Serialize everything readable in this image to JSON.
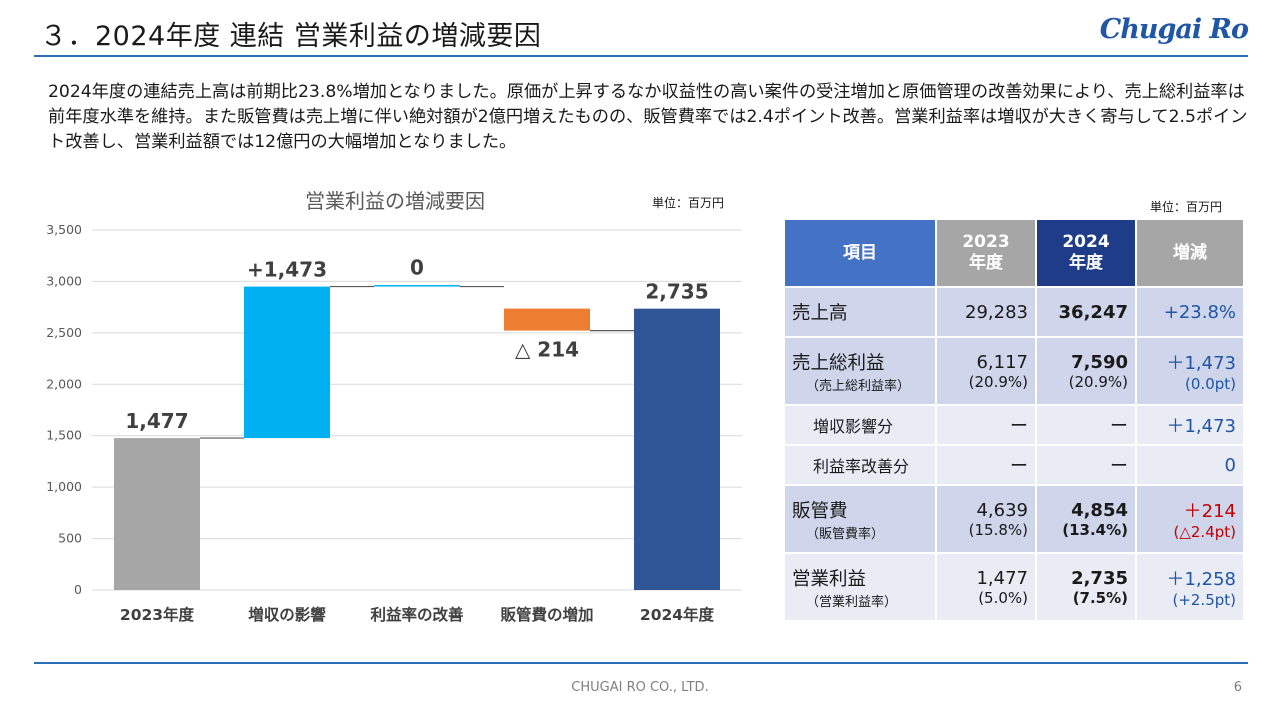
{
  "slide": {
    "title": "３．2024年度 連結 営業利益の増減要因",
    "logo": "Chugai Ro",
    "summary": "2024年度の連結売上高は前期比23.8%増加となりました。原価が上昇するなか収益性の高い案件の受注増加と原価管理の改善効果により、売上総利益率は前年度水準を維持。また販管費は売上増に伴い絶対額が2億円増えたものの、販管費率では2.4ポイント改善。営業利益率は増収が大きく寄与して2.5ポイント改善し、営業利益額では12億円の大幅増加となりました。",
    "footer": "CHUGAI RO CO., LTD.",
    "page": "6"
  },
  "chart_data": {
    "type": "bar",
    "subtype": "waterfall",
    "title": "営業利益の増減要因",
    "unit": "単位：百万円",
    "categories": [
      "2023年度",
      "増収の影響",
      "利益率の改善",
      "販管費の増加",
      "2024年度"
    ],
    "values": [
      1477,
      1473,
      0,
      -214,
      2735
    ],
    "bases": [
      0,
      1477,
      2950,
      2736,
      0
    ],
    "data_labels": [
      "1,477",
      "+1,473",
      "0",
      "△ 214",
      "2,735"
    ],
    "colors": [
      "#a6a6a6",
      "#00b0f0",
      "#00b0f0",
      "#ed7d31",
      "#2f5597"
    ],
    "ylim": [
      0,
      3500
    ],
    "yticks": [
      0,
      500,
      1000,
      1500,
      2000,
      2500,
      3000,
      3500
    ],
    "ytick_labels": [
      "0",
      "500",
      "1,000",
      "1,500",
      "2,000",
      "2,500",
      "3,000",
      "3,500"
    ],
    "grid": true
  },
  "table": {
    "unit": "単位：百万円",
    "headers": {
      "item": "項目",
      "prev": [
        "2023",
        "年度"
      ],
      "cur": [
        "2024",
        "年度"
      ],
      "change": "増減"
    },
    "rows": {
      "sales": {
        "label": "売上高",
        "prev": "29,283",
        "cur": "36,247",
        "change": "+23.8%"
      },
      "gross": {
        "label": "売上総利益",
        "sub": "（売上総利益率）",
        "prev": "6,117",
        "prev_sub": "(20.9%)",
        "cur": "7,590",
        "cur_sub": "(20.9%)",
        "change": "＋1,473",
        "change_sub": "(0.0pt)"
      },
      "volume": {
        "label": "増収影響分",
        "prev": "ー",
        "cur": "ー",
        "change": "＋1,473"
      },
      "margin": {
        "label": "利益率改善分",
        "prev": "ー",
        "cur": "ー",
        "change": "0"
      },
      "sga": {
        "label": "販管費",
        "sub": "（販管費率）",
        "prev": "4,639",
        "prev_sub": "(15.8%)",
        "cur": "4,854",
        "cur_sub": "(13.4%)",
        "change": "＋214",
        "change_sub": "(△2.4pt)"
      },
      "op": {
        "label": "営業利益",
        "sub": "（営業利益率）",
        "prev": "1,477",
        "prev_sub": "(5.0%)",
        "cur": "2,735",
        "cur_sub": "(7.5%)",
        "change": "＋1,258",
        "change_sub": "(+2.5pt)"
      }
    }
  }
}
